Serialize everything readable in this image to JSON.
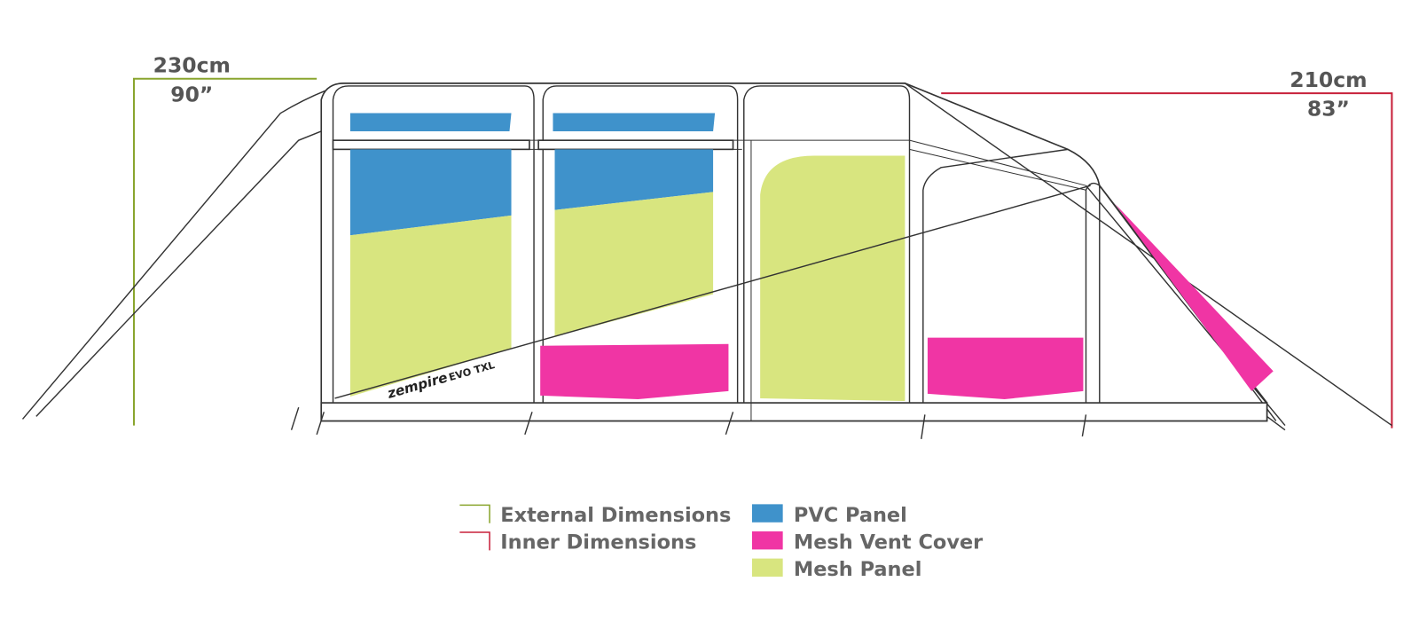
{
  "dimensions": {
    "external": {
      "metric": "230cm",
      "imperial": "90”"
    },
    "inner": {
      "metric": "210cm",
      "imperial": "83”"
    }
  },
  "logo": {
    "brand": "zempire",
    "model": "EVO TXL"
  },
  "legend": {
    "lines": [
      {
        "label": "External Dimensions",
        "color": "#8aa52e"
      },
      {
        "label": "Inner Dimensions",
        "color": "#c8203a"
      }
    ],
    "swatches": [
      {
        "label": "PVC Panel",
        "color": "#3f92cb"
      },
      {
        "label": "Mesh Vent Cover",
        "color": "#f035a4"
      },
      {
        "label": "Mesh Panel",
        "color": "#d8e57f"
      }
    ]
  }
}
